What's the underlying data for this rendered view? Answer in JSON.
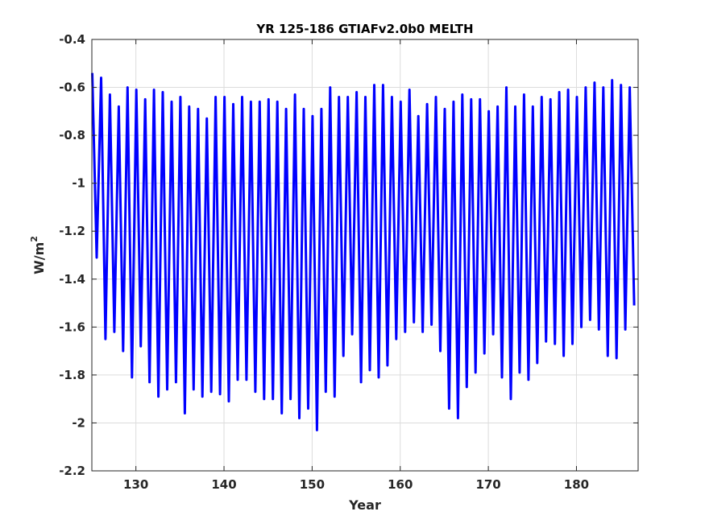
{
  "chart_data": {
    "type": "line",
    "title": "YR 125-186 GTIAFv2.0b0 MELTH",
    "xlabel": "Year",
    "ylabel": "W/m",
    "ylabel_superscript": "2",
    "xlim": [
      125,
      187
    ],
    "ylim": [
      -2.2,
      -0.4
    ],
    "x_ticks": [
      130,
      140,
      150,
      160,
      170,
      180
    ],
    "x_tick_labels": [
      "130",
      "140",
      "150",
      "160",
      "170",
      "180"
    ],
    "y_ticks": [
      -2.2,
      -2,
      -1.8,
      -1.6,
      -1.4,
      -1.2,
      -1,
      -0.8,
      -0.6,
      -0.4
    ],
    "y_tick_labels": [
      "-2.2",
      "-2",
      "-1.8",
      "-1.6",
      "-1.4",
      "-1.2",
      "-1",
      "-0.8",
      "-0.6",
      "-0.4"
    ],
    "grid": true,
    "line_color": "#0000ff",
    "series": [
      {
        "x_start": 125,
        "points_per_year": 2,
        "annual_max": [
          -0.54,
          -0.56,
          -0.63,
          -0.68,
          -0.6,
          -0.61,
          -0.65,
          -0.61,
          -0.62,
          -0.66,
          -0.64,
          -0.68,
          -0.69,
          -0.73,
          -0.64,
          -0.64,
          -0.67,
          -0.64,
          -0.66,
          -0.66,
          -0.65,
          -0.66,
          -0.69,
          -0.63,
          -0.69,
          -0.72,
          -0.69,
          -0.6,
          -0.64,
          -0.64,
          -0.62,
          -0.64,
          -0.59,
          -0.59,
          -0.64,
          -0.66,
          -0.61,
          -0.72,
          -0.67,
          -0.64,
          -0.69,
          -0.66,
          -0.63,
          -0.65,
          -0.65,
          -0.7,
          -0.68,
          -0.6,
          -0.68,
          -0.63,
          -0.68,
          -0.64,
          -0.65,
          -0.62,
          -0.61,
          -0.64,
          -0.6,
          -0.58,
          -0.6,
          -0.57,
          -0.59,
          -0.6
        ],
        "annual_min": [
          -1.31,
          -1.65,
          -1.62,
          -1.7,
          -1.81,
          -1.68,
          -1.83,
          -1.89,
          -1.86,
          -1.83,
          -1.96,
          -1.86,
          -1.89,
          -1.87,
          -1.88,
          -1.91,
          -1.82,
          -1.82,
          -1.87,
          -1.9,
          -1.9,
          -1.96,
          -1.9,
          -1.98,
          -1.94,
          -2.03,
          -1.87,
          -1.89,
          -1.72,
          -1.63,
          -1.83,
          -1.78,
          -1.81,
          -1.76,
          -1.65,
          -1.62,
          -1.58,
          -1.62,
          -1.59,
          -1.7,
          -1.94,
          -1.98,
          -1.85,
          -1.79,
          -1.71,
          -1.63,
          -1.81,
          -1.9,
          -1.79,
          -1.82,
          -1.75,
          -1.66,
          -1.67,
          -1.72,
          -1.67,
          -1.6,
          -1.57,
          -1.61,
          -1.72,
          -1.73,
          -1.61,
          -1.51
        ]
      }
    ]
  }
}
